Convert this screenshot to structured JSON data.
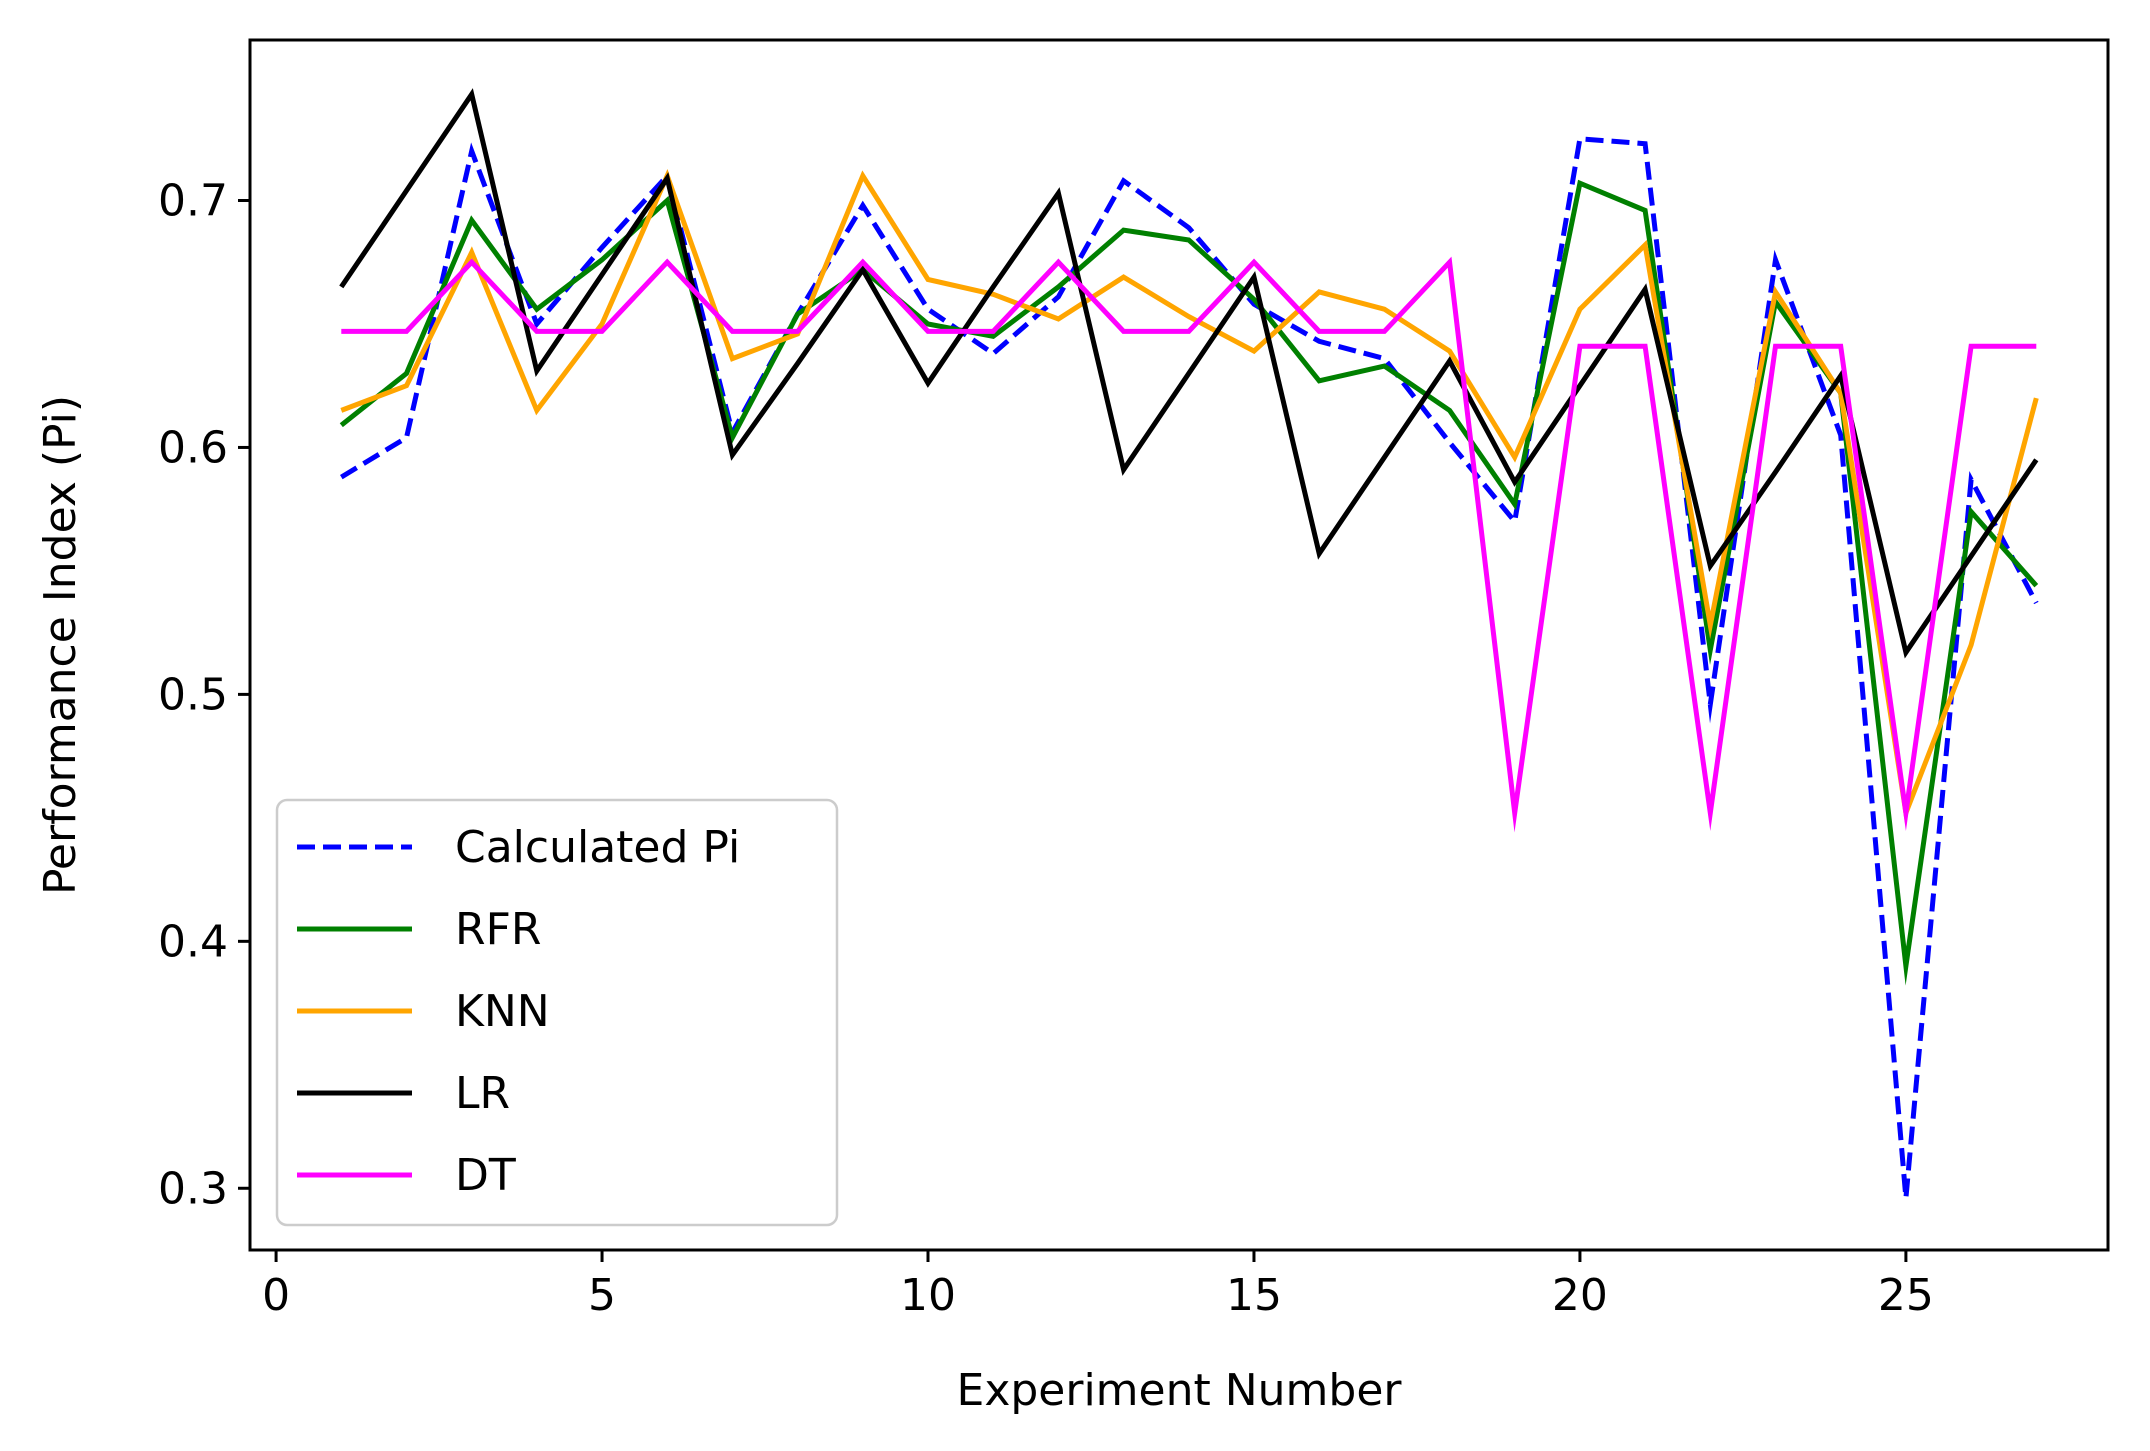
{
  "chart_data": {
    "type": "line",
    "title": "",
    "xlabel": "Experiment Number",
    "ylabel": "Performance Index (Pi)",
    "xlim": [
      -0.4,
      28.1
    ],
    "ylim": [
      0.275,
      0.765
    ],
    "xticks": [
      0,
      5,
      10,
      15,
      20,
      25
    ],
    "yticks": [
      0.3,
      0.4,
      0.5,
      0.6,
      0.7
    ],
    "xtick_labels": [
      "0",
      "5",
      "10",
      "15",
      "20",
      "25"
    ],
    "ytick_labels": [
      "0.3",
      "0.4",
      "0.5",
      "0.6",
      "0.7"
    ],
    "grid": false,
    "legend_position": "lower-left",
    "x": [
      1,
      2,
      3,
      4,
      5,
      6,
      7,
      8,
      9,
      10,
      11,
      12,
      13,
      14,
      15,
      16,
      17,
      18,
      19,
      20,
      21,
      22,
      23,
      24,
      25,
      26,
      27
    ],
    "series": [
      {
        "name": "Calculated Pi",
        "color": "#0000ff",
        "style": "dashed",
        "values": [
          0.588,
          0.604,
          0.72,
          0.65,
          0.681,
          0.71,
          0.606,
          0.654,
          0.698,
          0.656,
          0.638,
          0.661,
          0.708,
          0.689,
          0.658,
          0.643,
          0.636,
          0.602,
          0.57,
          0.725,
          0.723,
          0.496,
          0.676,
          0.605,
          0.296,
          0.587,
          0.537
        ]
      },
      {
        "name": "RFR",
        "color": "#008000",
        "style": "solid",
        "values": [
          0.609,
          0.63,
          0.692,
          0.656,
          0.676,
          0.7,
          0.604,
          0.654,
          0.672,
          0.65,
          0.645,
          0.665,
          0.688,
          0.684,
          0.66,
          0.627,
          0.633,
          0.615,
          0.577,
          0.707,
          0.696,
          0.518,
          0.659,
          0.622,
          0.39,
          0.574,
          0.544
        ]
      },
      {
        "name": "KNN",
        "color": "#ffa500",
        "style": "solid",
        "values": [
          0.615,
          0.625,
          0.679,
          0.615,
          0.65,
          0.71,
          0.636,
          0.646,
          0.71,
          0.668,
          0.662,
          0.652,
          0.669,
          0.653,
          0.639,
          0.663,
          0.656,
          0.639,
          0.596,
          0.656,
          0.682,
          0.528,
          0.663,
          0.622,
          0.452,
          0.52,
          0.62
        ]
      },
      {
        "name": "LR",
        "color": "#000000",
        "style": "solid",
        "values": [
          0.665,
          0.704,
          0.743,
          0.631,
          0.67,
          0.709,
          0.597,
          0.634,
          0.672,
          0.626,
          0.665,
          0.703,
          0.591,
          0.63,
          0.669,
          0.557,
          0.596,
          0.635,
          0.586,
          0.625,
          0.664,
          0.552,
          0.59,
          0.629,
          0.517,
          0.556,
          0.595
        ]
      },
      {
        "name": "DT",
        "color": "#ff00ff",
        "style": "solid",
        "values": [
          0.647,
          0.647,
          0.675,
          0.647,
          0.647,
          0.675,
          0.647,
          0.647,
          0.675,
          0.647,
          0.647,
          0.675,
          0.647,
          0.647,
          0.675,
          0.647,
          0.647,
          0.675,
          0.452,
          0.641,
          0.641,
          0.452,
          0.641,
          0.641,
          0.452,
          0.641,
          0.641
        ]
      }
    ]
  }
}
